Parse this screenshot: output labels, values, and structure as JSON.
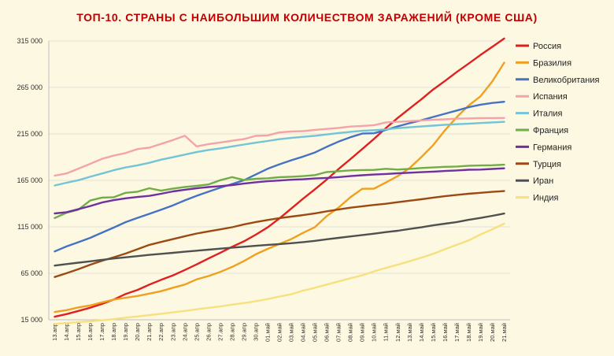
{
  "chart_data": {
    "type": "line",
    "title": "ТОП-10. СТРАНЫ С НАИБОЛЬШИМ КОЛИЧЕСТВОМ ЗАРАЖЕНИЙ (КРОМЕ США)",
    "xlabel": "",
    "ylabel": "",
    "ylim": [
      15000,
      315000
    ],
    "yticks": [
      "15 000",
      "65 000",
      "115 000",
      "165 000",
      "215 000",
      "265 000",
      "315 000"
    ],
    "ytick_values": [
      15000,
      65000,
      115000,
      165000,
      215000,
      265000,
      315000
    ],
    "grid": "horizontal",
    "legend_position": "right",
    "background": "#fdf8e1",
    "x": [
      "13.апр",
      "14.апр",
      "15.апр",
      "16.апр",
      "17.апр",
      "18.апр",
      "19.апр",
      "20.апр",
      "21.апр",
      "22.апр",
      "23.апр",
      "24.апр",
      "25.апр",
      "26.апр",
      "27.апр",
      "28.апр",
      "29.апр",
      "30.апр",
      "01.май",
      "02.май",
      "03.май",
      "04.май",
      "05.май",
      "06.май",
      "07.май",
      "08.май",
      "09.май",
      "10.май",
      "11.май",
      "12.май",
      "13.май",
      "14.май",
      "15.май",
      "16.май",
      "17.май",
      "18.май",
      "19.май",
      "20.май",
      "21.май"
    ],
    "series": [
      {
        "name": "Россия",
        "color": "#e02020",
        "values": [
          18300,
          21100,
          24500,
          28000,
          32000,
          36800,
          42800,
          47100,
          52800,
          58000,
          62800,
          68600,
          74600,
          80900,
          87100,
          93600,
          99400,
          106500,
          114400,
          124100,
          134700,
          145300,
          155400,
          165900,
          177200,
          187900,
          198700,
          209700,
          221300,
          232200,
          242300,
          252200,
          262800,
          272000,
          281700,
          290700,
          299900,
          308700,
          317600
        ]
      },
      {
        "name": "Бразилия",
        "color": "#f0a020",
        "values": [
          23400,
          25300,
          28300,
          30400,
          33700,
          36700,
          38700,
          40600,
          43100,
          45800,
          49500,
          52900,
          58500,
          62000,
          66500,
          71900,
          78200,
          85400,
          91300,
          96600,
          101800,
          108600,
          114700,
          126600,
          135800,
          146900,
          155900,
          156100,
          162700,
          169600,
          178200,
          190100,
          202900,
          219000,
          233100,
          245600,
          255400,
          271600,
          291600
        ]
      },
      {
        "name": "Великобритания",
        "color": "#4472c4",
        "values": [
          88600,
          93900,
          98500,
          103100,
          108700,
          114200,
          120100,
          124700,
          129000,
          133500,
          138100,
          143500,
          148400,
          152800,
          157100,
          161100,
          165200,
          171300,
          177500,
          182300,
          186600,
          190600,
          194990,
          201100,
          206700,
          211400,
          215300,
          215700,
          219200,
          223100,
          226500,
          229700,
          233200,
          236700,
          240200,
          243700,
          246400,
          248300,
          249600
        ]
      },
      {
        "name": "Испания",
        "color": "#f4a3a8",
        "values": [
          170100,
          172500,
          177600,
          182800,
          188100,
          191700,
          194400,
          198700,
          200200,
          204200,
          208400,
          213000,
          201500,
          204000,
          205800,
          207600,
          209400,
          212900,
          213400,
          216600,
          217500,
          218000,
          219300,
          220300,
          221400,
          222900,
          223600,
          224400,
          227400,
          228000,
          228700,
          229500,
          230200,
          230700,
          231400,
          231600,
          232000,
          232000,
          232100
        ]
      },
      {
        "name": "Италия",
        "color": "#72c4d6",
        "values": [
          159500,
          162500,
          165200,
          168900,
          172400,
          175900,
          178900,
          181200,
          183900,
          187300,
          189900,
          192700,
          195400,
          197700,
          199400,
          201500,
          203600,
          205500,
          207400,
          209300,
          210700,
          211900,
          213000,
          214400,
          215900,
          217200,
          218300,
          219000,
          219800,
          221200,
          222100,
          223000,
          223900,
          224800,
          225400,
          225900,
          226700,
          227400,
          228000
        ]
      },
      {
        "name": "Франция",
        "color": "#70ad47",
        "values": [
          124500,
          130200,
          133500,
          143300,
          146400,
          146900,
          151600,
          152800,
          156500,
          153900,
          156200,
          157900,
          159100,
          160600,
          165200,
          168500,
          165300,
          166700,
          167200,
          168400,
          168900,
          169600,
          170700,
          174000,
          174800,
          175800,
          176100,
          176300,
          177500,
          176600,
          177400,
          178300,
          178900,
          179600,
          179900,
          180800,
          181000,
          181300,
          181900
        ]
      },
      {
        "name": "Германия",
        "color": "#7030a0",
        "values": [
          129400,
          130800,
          134000,
          137400,
          141200,
          143700,
          145700,
          147100,
          148300,
          150600,
          153100,
          154900,
          156500,
          157800,
          158800,
          159900,
          161500,
          163000,
          164100,
          164800,
          165700,
          166200,
          167000,
          167600,
          168500,
          169600,
          170500,
          171300,
          171900,
          172600,
          173200,
          173800,
          174400,
          175100,
          175700,
          176400,
          176600,
          177300,
          178000
        ]
      },
      {
        "name": "Турция",
        "color": "#9c4a13",
        "values": [
          61000,
          65100,
          69400,
          74200,
          78500,
          82300,
          86300,
          90900,
          95600,
          98700,
          101800,
          104900,
          107800,
          110100,
          112300,
          114600,
          117600,
          120200,
          122400,
          124400,
          126000,
          127600,
          129500,
          131700,
          133700,
          135600,
          137100,
          138600,
          139800,
          141500,
          143100,
          144700,
          146400,
          148000,
          149400,
          150600,
          151600,
          152600,
          153500
        ]
      },
      {
        "name": "Иран",
        "color": "#505050",
        "values": [
          73300,
          74900,
          76400,
          77900,
          79500,
          80900,
          82200,
          83500,
          84800,
          85900,
          87000,
          88200,
          89300,
          90400,
          91500,
          92600,
          93600,
          94600,
          95600,
          96400,
          97400,
          98600,
          99900,
          101600,
          103100,
          104700,
          106200,
          107600,
          109300,
          110800,
          112700,
          114500,
          116600,
          118400,
          120200,
          122500,
          124600,
          126900,
          129300
        ]
      },
      {
        "name": "Индия",
        "color": "#f7e07e",
        "values": [
          10500,
          11500,
          12400,
          13400,
          14400,
          15700,
          17300,
          18600,
          20000,
          21400,
          23000,
          24500,
          26300,
          27900,
          29400,
          31300,
          33000,
          34900,
          37300,
          39900,
          42500,
          46400,
          49400,
          52900,
          56300,
          59700,
          62900,
          67100,
          70800,
          74300,
          78000,
          81900,
          85900,
          90900,
          95700,
          100300,
          106800,
          112400,
          118400
        ]
      }
    ]
  }
}
